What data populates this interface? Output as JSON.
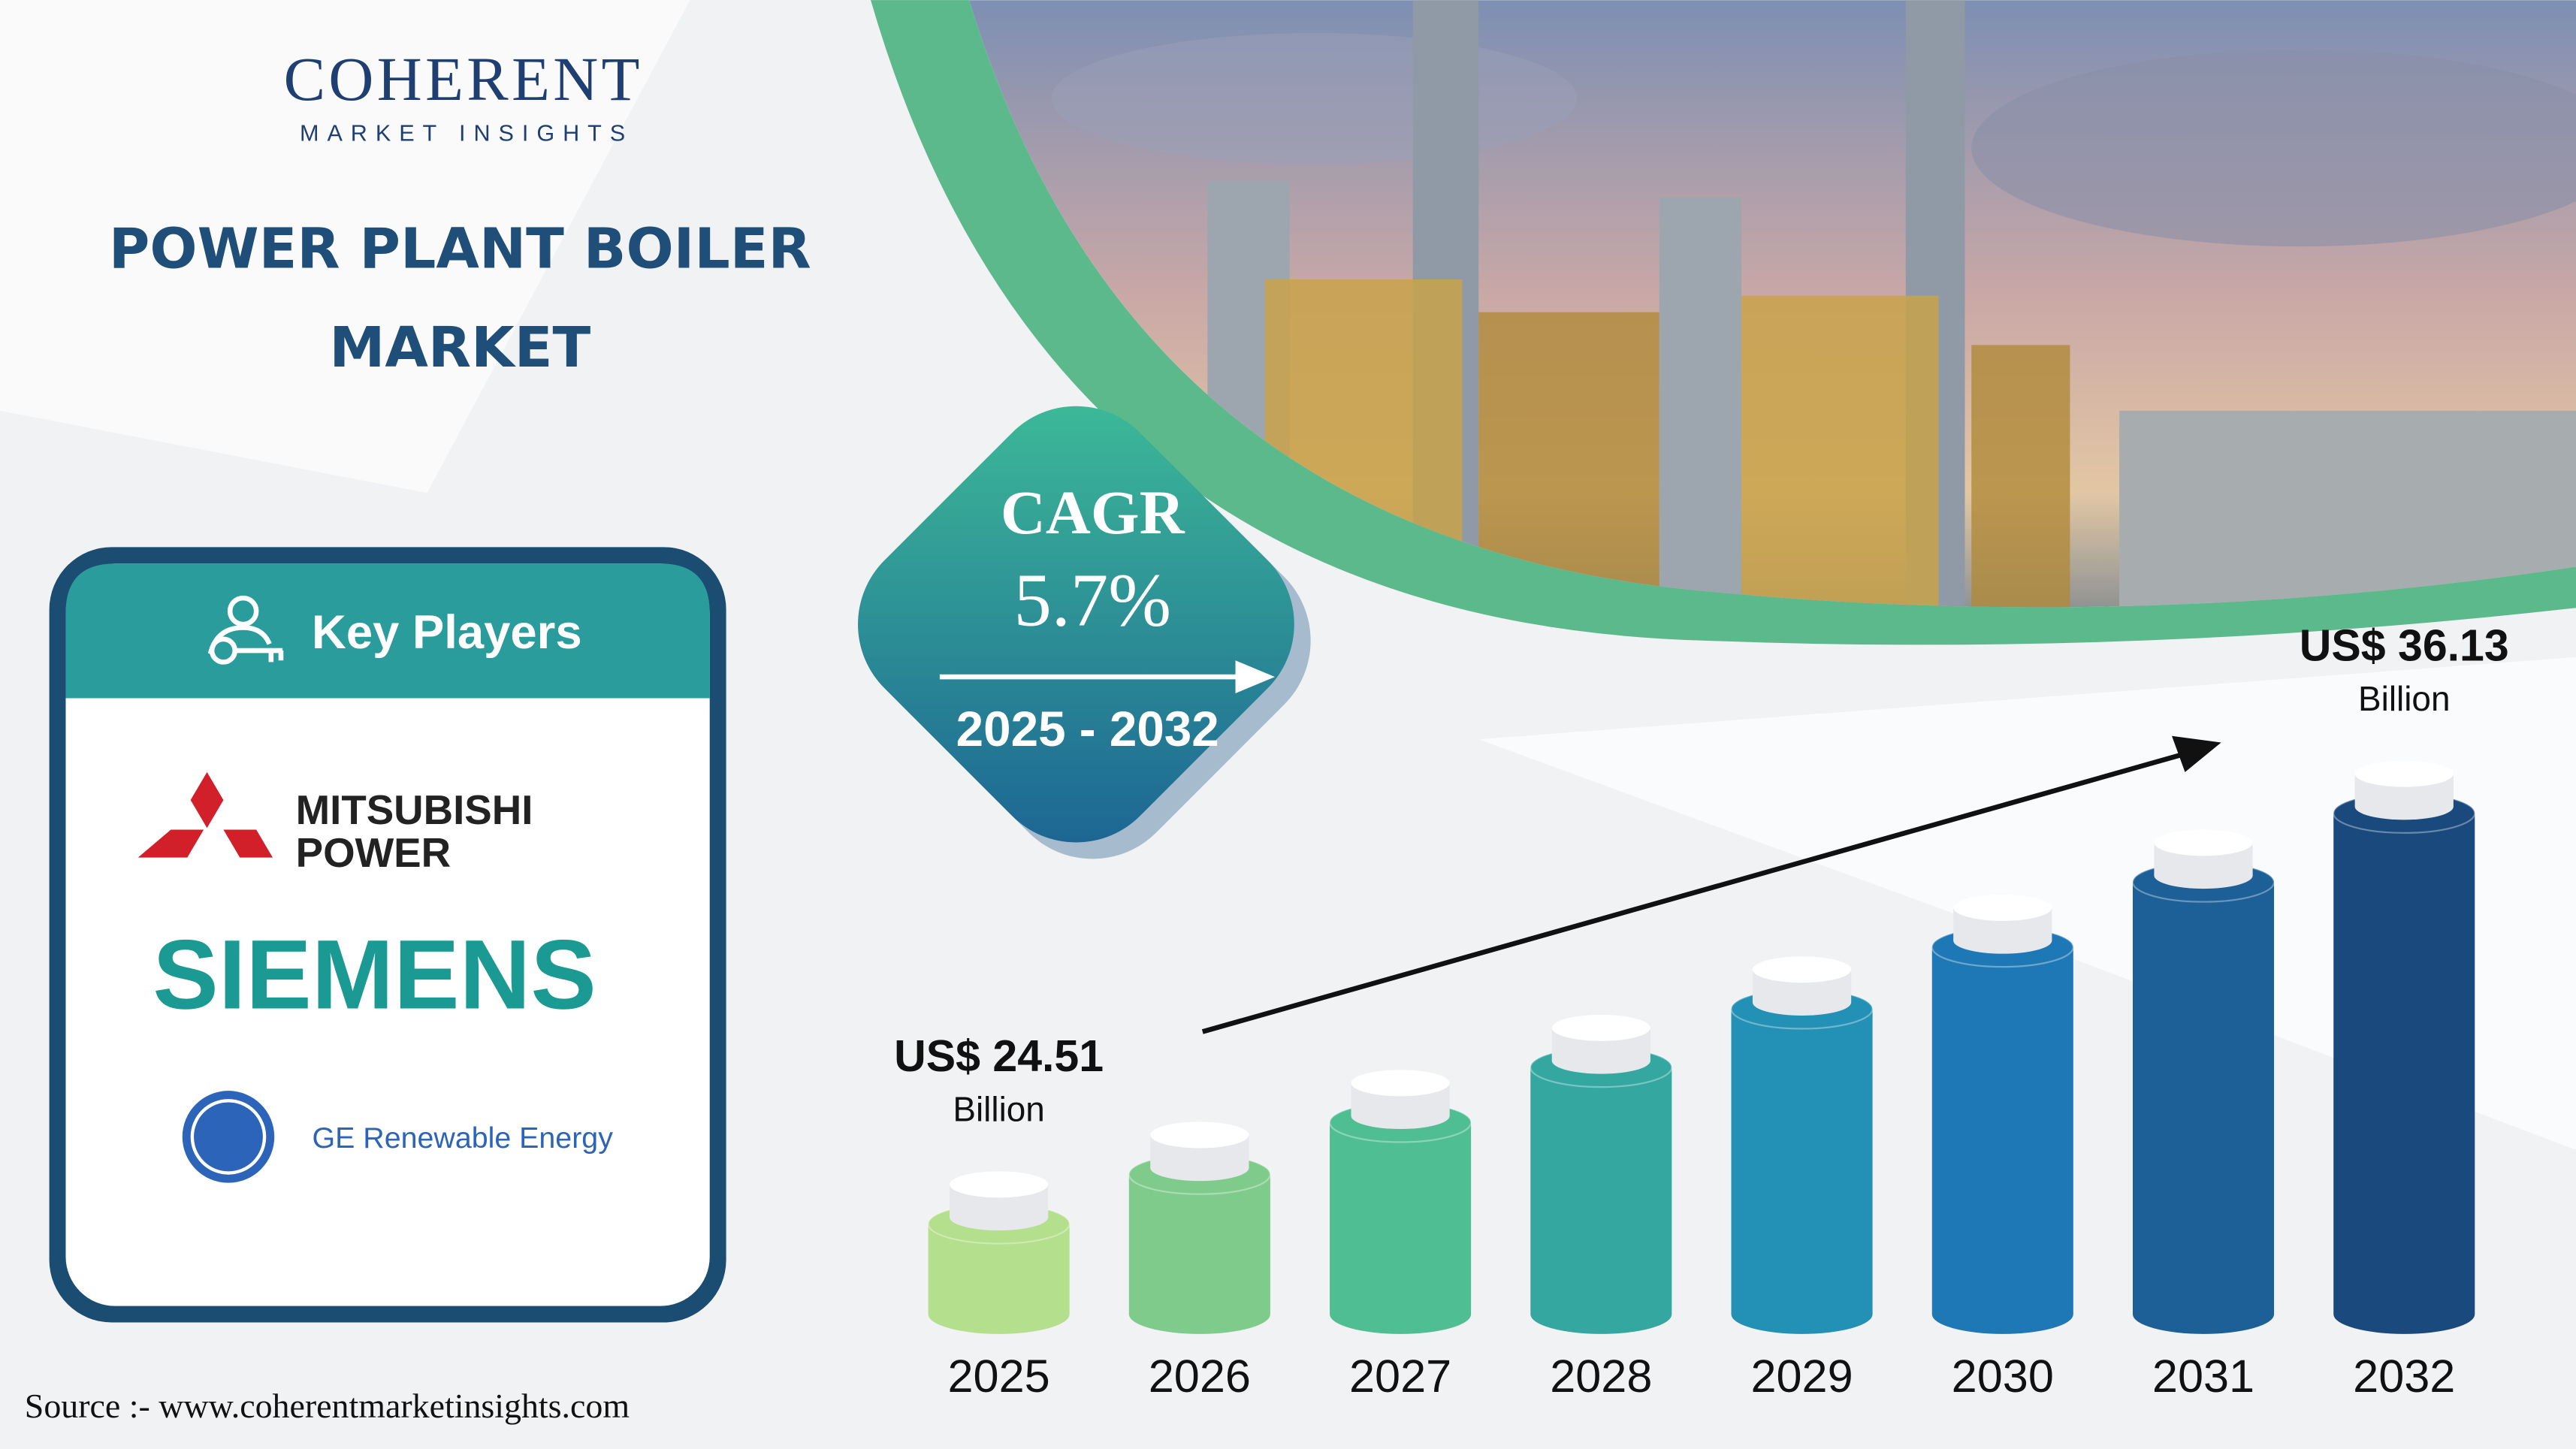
{
  "brand": {
    "name": "COHERENT",
    "tagline": "MARKET INSIGHTS"
  },
  "key_players": {
    "heading": "Key Players",
    "logos": [
      {
        "lines": [
          "MITSUBISHI",
          "POWER"
        ]
      },
      {
        "lines": [
          "SIEMENS"
        ]
      },
      {
        "lines": [
          "GE Renewable Energy"
        ]
      }
    ]
  },
  "cagr": {
    "label": "CAGR",
    "value": "5.7%",
    "period": "2025 - 2032"
  },
  "source": "Source :- www.coherentmarketinsights.com",
  "chart_data": {
    "type": "bar",
    "title": "POWER PLANT BOILER MARKET",
    "categories": [
      "2025",
      "2026",
      "2027",
      "2028",
      "2029",
      "2030",
      "2031",
      "2032"
    ],
    "values": [
      24.51,
      25.91,
      27.38,
      28.94,
      30.59,
      32.34,
      34.18,
      36.13
    ],
    "value_labels": [
      "US$ 24.51",
      null,
      null,
      null,
      null,
      null,
      null,
      "US$ 36.13"
    ],
    "value_unit": "Billion",
    "colors": [
      "#b4df8c",
      "#7fcb8b",
      "#4fbe92",
      "#35a7a1",
      "#2390b6",
      "#1f78b6",
      "#1d5f97",
      "#1a4a7d"
    ]
  }
}
